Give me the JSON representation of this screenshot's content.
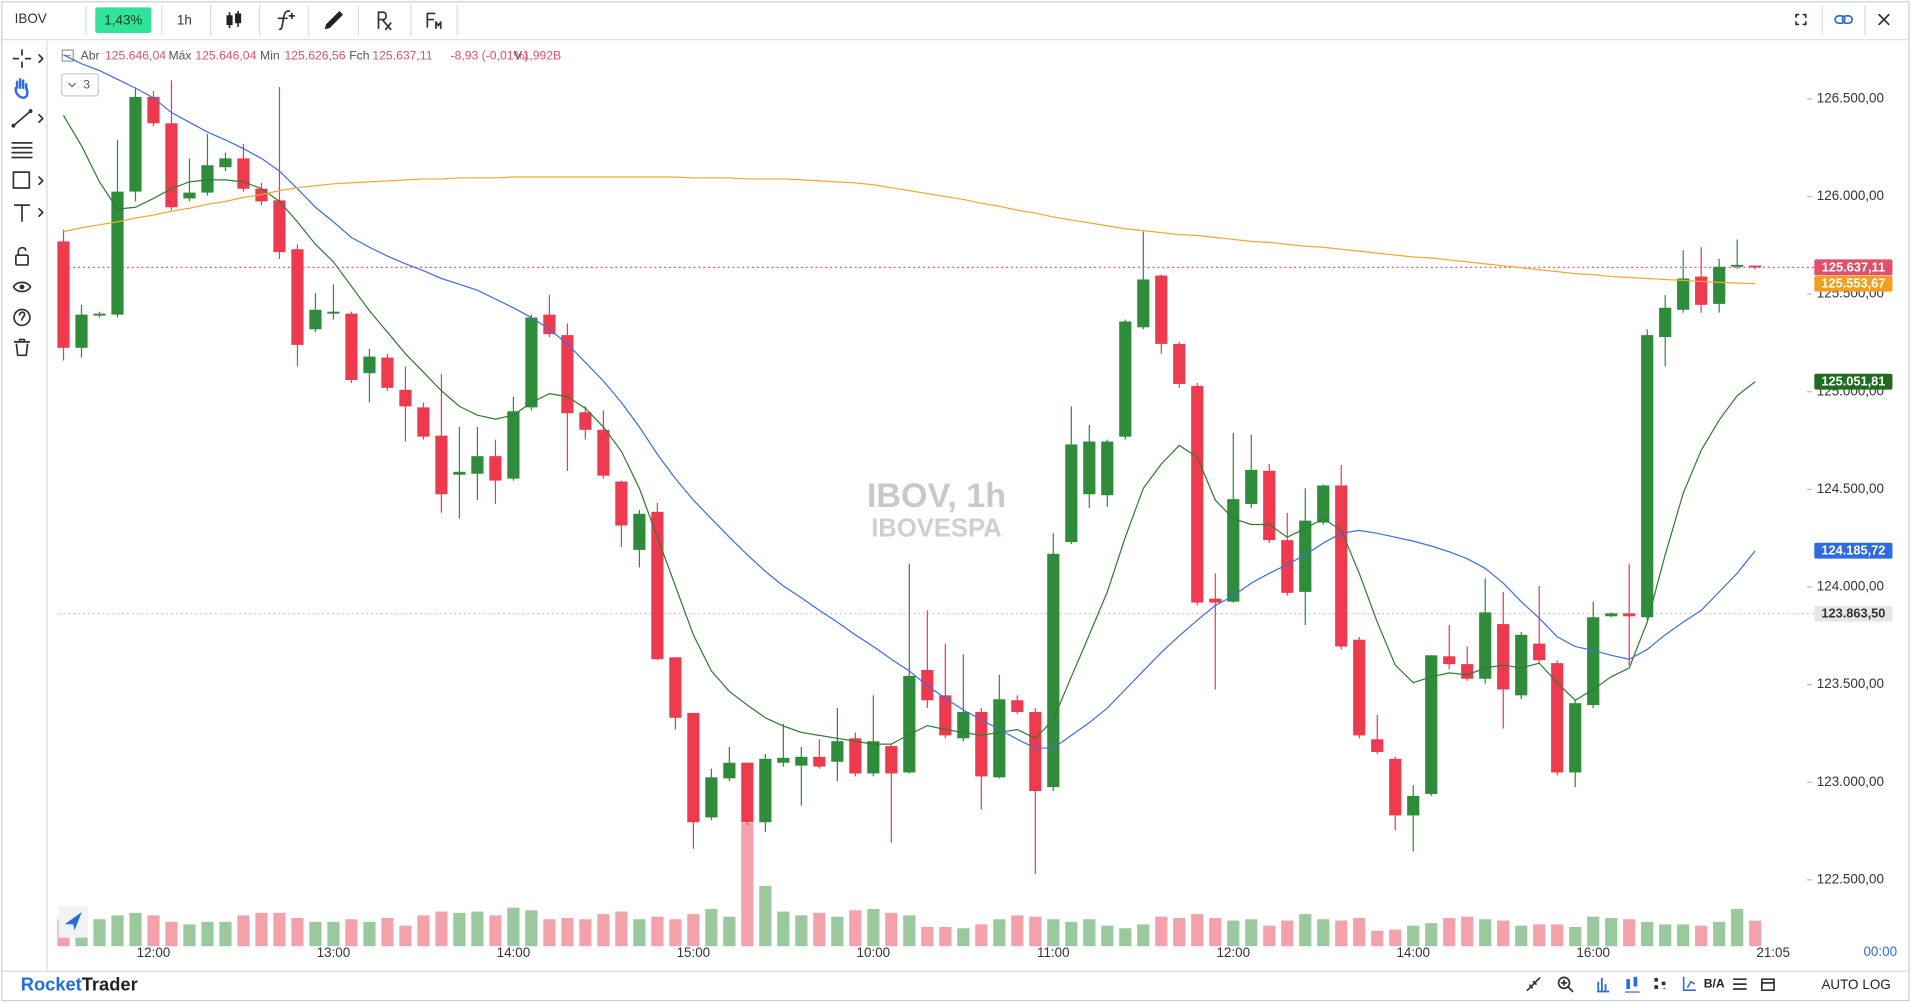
{
  "toolbar": {
    "symbol": "IBOV",
    "change": "1,43%",
    "timeframe": "1h"
  },
  "legend": {
    "open_label": "Abr",
    "open": "125.646,04",
    "high_label": "Máx",
    "high": "125.646,04",
    "low_label": "Min",
    "low": "125.626,56",
    "close_label": "Fch",
    "close": "125.637,11",
    "change": "-8,93 (-0,01%)",
    "volume_label": "V",
    "volume": "1,992B",
    "collapsed_count": 3
  },
  "footer": {
    "brand_1": "Rocket",
    "brand_2": "Trader",
    "bid_ask": "B/A",
    "auto": "AUTO",
    "log": "LOG"
  },
  "chart_data": {
    "type": "candlestick",
    "title": "IBOV, 1h",
    "subtitle": "IBOVESPA",
    "categories": [
      null,
      null,
      null,
      null,
      null,
      "12:00",
      null,
      null,
      null,
      null,
      null,
      null,
      null,
      null,
      null,
      "13:00",
      null,
      null,
      null,
      null,
      null,
      null,
      null,
      null,
      null,
      "14:00",
      null,
      null,
      null,
      null,
      null,
      null,
      null,
      null,
      null,
      "15:00",
      null,
      null,
      null,
      null,
      null,
      null,
      null,
      null,
      null,
      "10:00",
      null,
      null,
      null,
      null,
      null,
      null,
      null,
      null,
      null,
      "11:00",
      null,
      null,
      null,
      null,
      null,
      null,
      null,
      null,
      null,
      "12:00",
      null,
      null,
      null,
      null,
      null,
      null,
      null,
      null,
      null,
      "14:00",
      null,
      null,
      null,
      null,
      null,
      null,
      null,
      null,
      null,
      "16:00",
      null,
      null,
      null,
      null,
      null,
      null,
      null,
      null,
      null
    ],
    "time_label": "21:05",
    "countdown": "00:00",
    "open": [
      125770,
      125225,
      125390,
      125395,
      126025,
      126510,
      126375,
      125990,
      126020,
      126150,
      126195,
      126040,
      125980,
      125730,
      125320,
      125400,
      125400,
      125095,
      125175,
      125010,
      124920,
      124775,
      124575,
      124580,
      124670,
      124555,
      124920,
      125395,
      125290,
      124895,
      124805,
      124540,
      124190,
      124385,
      123640,
      123355,
      122820,
      123020,
      123100,
      122795,
      123100,
      123085,
      123130,
      123105,
      123225,
      123045,
      123185,
      123050,
      123575,
      123445,
      123225,
      123360,
      123025,
      123420,
      123360,
      122975,
      124230,
      124475,
      124470,
      124770,
      125330,
      125595,
      125245,
      125030,
      123940,
      123925,
      124425,
      124595,
      124240,
      123975,
      124330,
      124520,
      123730,
      123220,
      123120,
      122830,
      122940,
      123645,
      123605,
      123530,
      123810,
      123445,
      123710,
      123610,
      123050,
      123395,
      123850,
      123865,
      123845,
      125280,
      125420,
      125590,
      125450,
      125640,
      125646.04
    ],
    "high": [
      125830,
      125445,
      125410,
      126290,
      126555,
      126540,
      126595,
      126195,
      126320,
      126225,
      126270,
      126070,
      126560,
      125755,
      125505,
      125550,
      125410,
      125220,
      125195,
      125130,
      124945,
      125090,
      124820,
      124820,
      124755,
      124975,
      125395,
      125495,
      125350,
      124925,
      124905,
      124545,
      124395,
      124430,
      123640,
      123355,
      123070,
      123180,
      123100,
      123145,
      123300,
      123180,
      123220,
      123380,
      123255,
      123445,
      123195,
      124120,
      123880,
      123710,
      123655,
      123380,
      123550,
      123445,
      123380,
      124275,
      124925,
      124830,
      124755,
      125370,
      125820,
      125600,
      125255,
      125045,
      124070,
      124790,
      124780,
      124630,
      124380,
      124505,
      124525,
      124625,
      123745,
      123345,
      123130,
      122985,
      123650,
      123805,
      123695,
      124045,
      123975,
      123770,
      124005,
      123625,
      123420,
      123925,
      123870,
      124120,
      125320,
      125495,
      125725,
      125740,
      125680,
      125780,
      125646.04
    ],
    "low": [
      125160,
      125175,
      125380,
      125380,
      125975,
      126360,
      125930,
      125975,
      126005,
      126130,
      126025,
      125955,
      125680,
      125130,
      125305,
      125370,
      125045,
      124945,
      125005,
      124745,
      124755,
      124380,
      124350,
      124445,
      124425,
      124545,
      124905,
      125280,
      124595,
      124755,
      124555,
      124205,
      124100,
      123625,
      123270,
      122660,
      122805,
      123005,
      122780,
      122745,
      123080,
      122880,
      123070,
      123005,
      123030,
      123030,
      122690,
      123045,
      123380,
      123225,
      123210,
      122860,
      123020,
      123350,
      122530,
      122955,
      124220,
      124405,
      124410,
      124755,
      125320,
      125195,
      125020,
      123905,
      123475,
      123920,
      124405,
      124225,
      123955,
      123805,
      124320,
      123680,
      123225,
      123145,
      122755,
      122645,
      122930,
      123580,
      123520,
      123505,
      123275,
      123425,
      123605,
      123035,
      122975,
      123380,
      123845,
      123600,
      123830,
      125130,
      125405,
      125405,
      125405,
      125630,
      125626.56
    ],
    "close": [
      125225,
      125395,
      125400,
      126025,
      126510,
      126375,
      125945,
      126020,
      126160,
      126195,
      126040,
      125975,
      125715,
      125240,
      125420,
      125410,
      125060,
      125180,
      125020,
      124925,
      124770,
      124475,
      124590,
      124670,
      124545,
      124900,
      125380,
      125295,
      124890,
      124805,
      124570,
      124315,
      124375,
      123630,
      123330,
      122795,
      123025,
      123100,
      122795,
      123120,
      123125,
      123130,
      123080,
      123210,
      123045,
      123210,
      123045,
      123545,
      123420,
      123240,
      123360,
      123030,
      123425,
      123360,
      122955,
      124170,
      124730,
      124745,
      124745,
      125360,
      125575,
      125245,
      125040,
      123920,
      123920,
      124450,
      124600,
      124240,
      123970,
      124340,
      124520,
      123695,
      123240,
      123155,
      122830,
      122930,
      123650,
      123605,
      123530,
      123870,
      123475,
      123755,
      123625,
      123050,
      123405,
      123845,
      123865,
      123850,
      125290,
      125430,
      125580,
      125445,
      125640,
      125650,
      125637.11
    ],
    "volume": [
      2.1,
      1.9,
      2.1,
      2.4,
      2.6,
      2.4,
      1.9,
      1.7,
      1.9,
      1.9,
      2.4,
      2.6,
      2.6,
      2.2,
      1.9,
      1.9,
      2.1,
      1.9,
      2.2,
      1.6,
      2.4,
      2.7,
      2.6,
      2.7,
      2.4,
      3.0,
      2.8,
      2.1,
      2.2,
      2.1,
      2.5,
      2.7,
      2.1,
      2.3,
      2.1,
      2.5,
      2.9,
      2.3,
      9.6,
      4.7,
      2.7,
      2.4,
      2.6,
      2.3,
      2.8,
      2.9,
      2.6,
      2.4,
      1.5,
      1.5,
      1.4,
      1.7,
      2.1,
      2.4,
      2.3,
      2.1,
      1.9,
      2.1,
      1.6,
      1.4,
      1.7,
      2.3,
      2.2,
      2.5,
      2.2,
      2.0,
      2.1,
      1.6,
      2.0,
      2.5,
      2.1,
      2.0,
      2.2,
      1.2,
      1.3,
      1.6,
      1.8,
      2.2,
      2.3,
      2.1,
      2.0,
      1.6,
      1.7,
      1.7,
      1.5,
      2.3,
      2.2,
      2.1,
      1.9,
      1.7,
      1.7,
      1.6,
      1.9,
      2.9,
      1.992
    ],
    "up_color": "#2f8c3a",
    "down_color": "#ee3a4e",
    "up_volume_color": "#9cc89d",
    "down_volume_color": "#f4a2aa",
    "series": [
      {
        "color": "#2e7d2e",
        "values": [
          126415,
          126260,
          126075,
          125935,
          125945,
          125990,
          126040,
          126075,
          126085,
          126085,
          126075,
          126040,
          125975,
          125870,
          125755,
          125665,
          125540,
          125415,
          125305,
          125195,
          125100,
          125005,
          124925,
          124880,
          124860,
          124880,
          124945,
          124990,
          124975,
          124915,
          124820,
          124695,
          124505,
          124255,
          124005,
          123755,
          123570,
          123465,
          123395,
          123330,
          123288,
          123255,
          123240,
          123225,
          123210,
          123195,
          123195,
          123245,
          123290,
          123270,
          123255,
          123240,
          123255,
          123270,
          123225,
          123320,
          123540,
          123755,
          123975,
          124255,
          124505,
          124630,
          124725,
          124665,
          124445,
          124350,
          124320,
          124320,
          124255,
          124300,
          124350,
          124290,
          124070,
          123820,
          123600,
          123510,
          123540,
          123560,
          123550,
          123585,
          123600,
          123585,
          123610,
          123510,
          123420,
          123475,
          123540,
          123585,
          123820,
          124165,
          124480,
          124700,
          124855,
          124980,
          125051.81
        ]
      },
      {
        "color": "#3b6fe0",
        "values": [
          126725,
          126680,
          126645,
          126600,
          126555,
          126505,
          126430,
          126380,
          126330,
          126290,
          126245,
          126195,
          126130,
          126040,
          125945,
          125870,
          125790,
          125740,
          125695,
          125655,
          125620,
          125580,
          125550,
          125520,
          125475,
          125430,
          125380,
          125320,
          125245,
          125150,
          125055,
          124945,
          124820,
          124680,
          124555,
          124445,
          124350,
          124255,
          124165,
          124080,
          124005,
          123945,
          123880,
          123820,
          123755,
          123695,
          123630,
          123570,
          123495,
          123430,
          123370,
          123320,
          123270,
          123220,
          123175,
          123175,
          123240,
          123305,
          123380,
          123475,
          123570,
          123665,
          123750,
          123830,
          123905,
          123955,
          124020,
          124070,
          124115,
          124165,
          124225,
          124275,
          124290,
          124275,
          124255,
          124235,
          124210,
          124180,
          124145,
          124095,
          124020,
          123925,
          123840,
          123745,
          123695,
          123675,
          123650,
          123630,
          123680,
          123755,
          123820,
          123880,
          123975,
          124070,
          124185.72
        ]
      },
      {
        "color": "#f0a830",
        "values": [
          125820,
          125840,
          125855,
          125870,
          125890,
          125905,
          125925,
          125940,
          125960,
          125975,
          125995,
          126010,
          126030,
          126045,
          126055,
          126065,
          126070,
          126075,
          126080,
          126085,
          126090,
          126090,
          126095,
          126095,
          126095,
          126100,
          126100,
          126100,
          126100,
          126100,
          126100,
          126100,
          126100,
          126100,
          126100,
          126095,
          126095,
          126095,
          126090,
          126090,
          126090,
          126085,
          126080,
          126075,
          126070,
          126060,
          126045,
          126030,
          126015,
          126000,
          125985,
          125965,
          125950,
          125930,
          125915,
          125895,
          125880,
          125865,
          125850,
          125835,
          125825,
          125815,
          125805,
          125800,
          125790,
          125780,
          125770,
          125765,
          125755,
          125745,
          125740,
          125730,
          125720,
          125710,
          125700,
          125690,
          125685,
          125675,
          125665,
          125655,
          125645,
          125635,
          125625,
          125615,
          125605,
          125600,
          125590,
          125585,
          125580,
          125575,
          125570,
          125565,
          125560,
          125557,
          125553.67
        ]
      }
    ],
    "ylim": [
      122160,
      126800
    ],
    "log_scale": false,
    "yticks": [
      {
        "value": 122500,
        "label": "122.500,00"
      },
      {
        "value": 123000,
        "label": "123.000,00"
      },
      {
        "value": 123500,
        "label": "123.500,00"
      },
      {
        "value": 124000,
        "label": "124.000,00"
      },
      {
        "value": 124500,
        "label": "124.500,00"
      },
      {
        "value": 125000,
        "label": "125.000,00"
      },
      {
        "value": 125500,
        "label": "125.500,00"
      },
      {
        "value": 126000,
        "label": "126.000,00"
      },
      {
        "value": 126500,
        "label": "126.500,00"
      }
    ],
    "price_markers": [
      {
        "value": 125637.11,
        "label": "125.637,11",
        "color": "#e0506a",
        "text_color": "#ffffff",
        "line": true
      },
      {
        "value": 125553.67,
        "label": "125.553,67",
        "color": "#f0a020",
        "text_color": "#ffffff",
        "line": false
      },
      {
        "value": 125051.81,
        "label": "125.051,81",
        "color": "#1f6b1f",
        "text_color": "#ffffff",
        "line": false
      },
      {
        "value": 124185.72,
        "label": "124.185,72",
        "color": "#2d6be0",
        "text_color": "#ffffff",
        "line": false
      },
      {
        "value": 123863.5,
        "label": "123.863,50",
        "color": "#e6e6e6",
        "text_color": "#333333",
        "line": true
      }
    ]
  }
}
